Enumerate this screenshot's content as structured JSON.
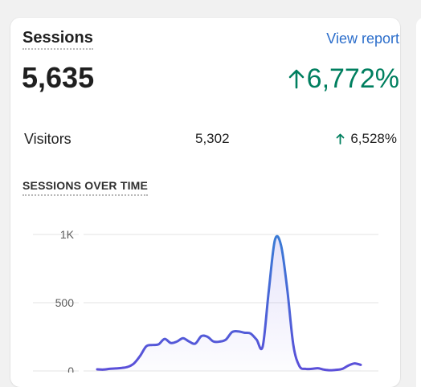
{
  "card": {
    "title": "Sessions",
    "link": "View report",
    "value": "5,635",
    "change": "6,772%",
    "change_color": "#007f5f",
    "link_color": "#2c6ecb"
  },
  "visitors": {
    "label": "Visitors",
    "value": "5,302",
    "change": "6,528%"
  },
  "section": {
    "title": "SESSIONS OVER TIME"
  },
  "icons": {
    "change_arrow": "arrow-up-icon"
  },
  "chart_data": {
    "type": "line",
    "title": "SESSIONS OVER TIME",
    "y_ticks": [
      "1K",
      "500",
      "0"
    ],
    "ylim": [
      0,
      1000
    ],
    "grid": true,
    "series": [
      {
        "color": "#5b50d6",
        "values": [
          12,
          10,
          15,
          18,
          22,
          30,
          55,
          110,
          180,
          190,
          195,
          235,
          205,
          215,
          240,
          215,
          200,
          255,
          250,
          215,
          215,
          230,
          285,
          290,
          280,
          275,
          230,
          180,
          590,
          960,
          920,
          600,
          190,
          35,
          15,
          15,
          20,
          10,
          5,
          8,
          15,
          40,
          55,
          45
        ]
      }
    ]
  }
}
